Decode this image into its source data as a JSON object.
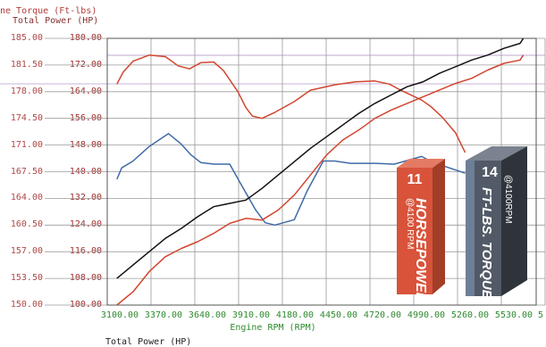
{
  "header": {
    "line1": "ne Torque (Ft-lbs)",
    "line2": "Total Power (HP)"
  },
  "bottom_label": "Total Power (HP)",
  "badges": {
    "hp": {
      "big": "11",
      "small": "@4100 RPM",
      "word": "HORSEPOWER"
    },
    "tq": {
      "big": "14",
      "small": "@4100RPM",
      "word": "FT-LBS. TORQUE"
    }
  },
  "colors": {
    "torque": "#3f6aa8",
    "horsepower": "#d2452f",
    "cumulative": "#111111",
    "hp_badge": "#d8533a",
    "tq_badge": "#515a66"
  },
  "chart_data": {
    "type": "line",
    "title": "",
    "xlabel": "Engine RPM (RPM)",
    "ylabel_left": "ne Torque (Ft-lbs)",
    "ylabel_right": "Total Power (HP)",
    "x_ticks": [
      "3100.00",
      "3370.00",
      "3640.00",
      "3910.00",
      "4180.00",
      "4450.00",
      "4720.00",
      "4990.00",
      "5260.00",
      "5530.00",
      "5"
    ],
    "y_left_ticks": [
      "185.00",
      "181.50",
      "178.00",
      "174.50",
      "171.00",
      "167.50",
      "164.00",
      "160.50",
      "157.00",
      "153.50",
      "150.00"
    ],
    "y_right_ticks": [
      "180.00",
      "172.00",
      "164.00",
      "156.00",
      "148.00",
      "140.00",
      "132.00",
      "124.00",
      "116.00",
      "108.00",
      "100.00"
    ],
    "xlim": [
      3040,
      5700
    ],
    "ylim_left": [
      150,
      185
    ],
    "ylim_right": [
      100,
      180
    ],
    "grid": true,
    "series": [
      {
        "axis": "left",
        "color": "#3f6aa8",
        "x": [
          3100,
          3130,
          3200,
          3300,
          3420,
          3500,
          3560,
          3620,
          3700,
          3800,
          3860,
          3960,
          4020,
          4080,
          4200,
          4280,
          4380,
          4450,
          4550,
          4700,
          4820,
          4990,
          5060,
          5120,
          5260
        ],
        "y": [
          166.5,
          168.0,
          168.9,
          170.8,
          172.5,
          171.1,
          169.7,
          168.7,
          168.5,
          168.5,
          166.2,
          162.5,
          160.8,
          160.5,
          161.2,
          165.0,
          168.9,
          168.9,
          168.6,
          168.6,
          168.5,
          169.5,
          168.7,
          168.3,
          167.3
        ]
      },
      {
        "axis": "left",
        "color": "#d2452f",
        "x": [
          3100,
          3140,
          3200,
          3300,
          3400,
          3480,
          3550,
          3620,
          3700,
          3760,
          3850,
          3900,
          3940,
          4000,
          4080,
          4200,
          4300,
          4450,
          4580,
          4700,
          4790,
          4860,
          4990,
          5050,
          5120,
          5200,
          5260
        ],
        "y": [
          179.0,
          180.6,
          182.0,
          182.8,
          182.6,
          181.4,
          181.0,
          181.8,
          181.9,
          180.8,
          178.0,
          175.9,
          174.8,
          174.5,
          175.3,
          176.7,
          178.2,
          178.9,
          179.3,
          179.4,
          179.0,
          178.2,
          176.9,
          176.0,
          174.6,
          172.6,
          170.0
        ]
      },
      {
        "axis": "right",
        "color": "#111111",
        "x": [
          3100,
          3200,
          3300,
          3400,
          3500,
          3600,
          3700,
          3800,
          3900,
          4000,
          4100,
          4200,
          4300,
          4400,
          4500,
          4600,
          4700,
          4800,
          4900,
          5000,
          5100,
          5200,
          5300,
          5400,
          5500,
          5600,
          5620
        ],
        "y": [
          108.0,
          112.0,
          116.0,
          120.0,
          123.0,
          126.5,
          129.5,
          130.5,
          131.5,
          135.0,
          139.0,
          143.0,
          147.0,
          150.5,
          154.0,
          157.5,
          160.5,
          163.0,
          165.5,
          167.0,
          169.5,
          171.5,
          173.5,
          175.0,
          177.0,
          178.5,
          180.0
        ]
      },
      {
        "axis": "right",
        "color": "#d2452f",
        "x": [
          3100,
          3200,
          3300,
          3400,
          3500,
          3600,
          3700,
          3800,
          3900,
          4000,
          4100,
          4200,
          4300,
          4400,
          4500,
          4600,
          4700,
          4800,
          4900,
          5000,
          5100,
          5200,
          5300,
          5400,
          5500,
          5600,
          5620
        ],
        "y": [
          100.0,
          104.0,
          110.0,
          114.5,
          117.0,
          119.0,
          121.5,
          124.5,
          126.0,
          125.5,
          128.5,
          133.0,
          139.0,
          145.0,
          149.5,
          152.5,
          156.0,
          158.5,
          160.5,
          162.5,
          164.5,
          166.5,
          168.0,
          170.5,
          172.5,
          173.5,
          175.0
        ]
      }
    ]
  }
}
